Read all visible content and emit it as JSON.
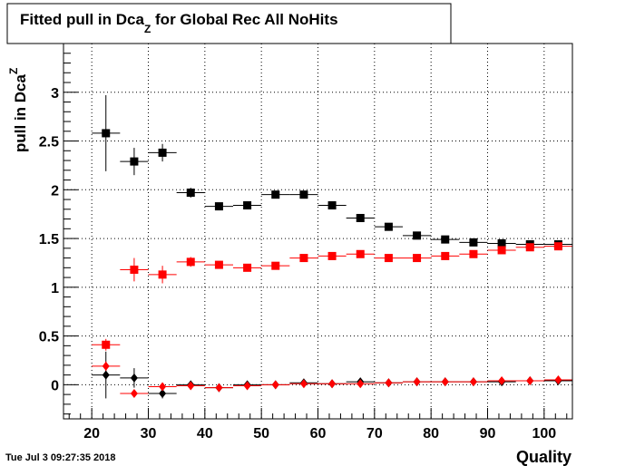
{
  "chart_data": {
    "type": "scatter",
    "title": {
      "prefix": "Fitted pull in Dca",
      "sub": "Z",
      "suffix": " for Global Rec All NoHits"
    },
    "ylabel": {
      "main": "pull in Dca",
      "sub": "Z"
    },
    "xlabel": "Quality",
    "timestamp": "Tue Jul  3 09:27:35 2018",
    "xlim": [
      15,
      105
    ],
    "ylim": [
      -0.35,
      3.5
    ],
    "x_ticks": [
      20,
      30,
      40,
      50,
      60,
      70,
      80,
      90,
      100
    ],
    "y_ticks": [
      0,
      0.5,
      1,
      1.5,
      2,
      2.5,
      3
    ],
    "y_tick_labels": [
      "0",
      "0.5",
      "1",
      "1.5",
      "2",
      "2.5",
      "3"
    ],
    "grid": true,
    "bin_width": 5,
    "series": [
      {
        "marker": "square",
        "color": "#000000",
        "points": [
          {
            "x": 22.5,
            "y": 2.58,
            "err": 0.39
          },
          {
            "x": 27.5,
            "y": 2.29,
            "err": 0.14
          },
          {
            "x": 32.5,
            "y": 2.38,
            "err": 0.09
          },
          {
            "x": 37.5,
            "y": 1.97,
            "err": 0.05
          },
          {
            "x": 42.5,
            "y": 1.83,
            "err": 0.03
          },
          {
            "x": 47.5,
            "y": 1.84,
            "err": 0.02
          },
          {
            "x": 52.5,
            "y": 1.95,
            "err": 0.02
          },
          {
            "x": 57.5,
            "y": 1.95,
            "err": 0.02
          },
          {
            "x": 62.5,
            "y": 1.84,
            "err": 0.02
          },
          {
            "x": 67.5,
            "y": 1.71,
            "err": 0.02
          },
          {
            "x": 72.5,
            "y": 1.62,
            "err": 0.02
          },
          {
            "x": 77.5,
            "y": 1.53,
            "err": 0.01
          },
          {
            "x": 82.5,
            "y": 1.49,
            "err": 0.01
          },
          {
            "x": 87.5,
            "y": 1.46,
            "err": 0.01
          },
          {
            "x": 92.5,
            "y": 1.45,
            "err": 0.01
          },
          {
            "x": 97.5,
            "y": 1.44,
            "err": 0.01
          },
          {
            "x": 102.5,
            "y": 1.44,
            "err": 0.01
          }
        ]
      },
      {
        "marker": "square",
        "color": "#ff0000",
        "points": [
          {
            "x": 22.5,
            "y": 0.41,
            "err": 0.06
          },
          {
            "x": 27.5,
            "y": 1.18,
            "err": 0.12
          },
          {
            "x": 32.5,
            "y": 1.13,
            "err": 0.09
          },
          {
            "x": 37.5,
            "y": 1.26,
            "err": 0.05
          },
          {
            "x": 42.5,
            "y": 1.23,
            "err": 0.03
          },
          {
            "x": 47.5,
            "y": 1.2,
            "err": 0.02
          },
          {
            "x": 52.5,
            "y": 1.22,
            "err": 0.02
          },
          {
            "x": 57.5,
            "y": 1.3,
            "err": 0.02
          },
          {
            "x": 62.5,
            "y": 1.32,
            "err": 0.02
          },
          {
            "x": 67.5,
            "y": 1.34,
            "err": 0.02
          },
          {
            "x": 72.5,
            "y": 1.3,
            "err": 0.01
          },
          {
            "x": 77.5,
            "y": 1.3,
            "err": 0.01
          },
          {
            "x": 82.5,
            "y": 1.32,
            "err": 0.01
          },
          {
            "x": 87.5,
            "y": 1.34,
            "err": 0.01
          },
          {
            "x": 92.5,
            "y": 1.38,
            "err": 0.01
          },
          {
            "x": 97.5,
            "y": 1.41,
            "err": 0.01
          },
          {
            "x": 102.5,
            "y": 1.42,
            "err": 0.01
          }
        ]
      },
      {
        "marker": "diamond",
        "color": "#000000",
        "points": [
          {
            "x": 22.5,
            "y": 0.1,
            "err": 0.24
          },
          {
            "x": 27.5,
            "y": 0.07,
            "err": 0.1
          },
          {
            "x": 32.5,
            "y": -0.09,
            "err": 0.05
          },
          {
            "x": 37.5,
            "y": 0.0,
            "err": 0.03
          },
          {
            "x": 42.5,
            "y": -0.03,
            "err": 0.02
          },
          {
            "x": 47.5,
            "y": 0.0,
            "err": 0.01
          },
          {
            "x": 52.5,
            "y": 0.0,
            "err": 0.01
          },
          {
            "x": 57.5,
            "y": 0.02,
            "err": 0.01
          },
          {
            "x": 62.5,
            "y": 0.01,
            "err": 0.01
          },
          {
            "x": 67.5,
            "y": 0.03,
            "err": 0.01
          },
          {
            "x": 72.5,
            "y": 0.02,
            "err": 0.01
          },
          {
            "x": 77.5,
            "y": 0.03,
            "err": 0.01
          },
          {
            "x": 82.5,
            "y": 0.03,
            "err": 0.01
          },
          {
            "x": 87.5,
            "y": 0.03,
            "err": 0.01
          },
          {
            "x": 92.5,
            "y": 0.03,
            "err": 0.01
          },
          {
            "x": 97.5,
            "y": 0.04,
            "err": 0.01
          },
          {
            "x": 102.5,
            "y": 0.04,
            "err": 0.01
          }
        ]
      },
      {
        "marker": "diamond",
        "color": "#ff0000",
        "points": [
          {
            "x": 22.5,
            "y": 0.19,
            "err": 0.05
          },
          {
            "x": 27.5,
            "y": -0.09,
            "err": 0.03
          },
          {
            "x": 32.5,
            "y": -0.02,
            "err": 0.02
          },
          {
            "x": 37.5,
            "y": -0.01,
            "err": 0.02
          },
          {
            "x": 42.5,
            "y": -0.03,
            "err": 0.01
          },
          {
            "x": 47.5,
            "y": -0.01,
            "err": 0.01
          },
          {
            "x": 52.5,
            "y": 0.0,
            "err": 0.01
          },
          {
            "x": 57.5,
            "y": 0.01,
            "err": 0.01
          },
          {
            "x": 62.5,
            "y": 0.01,
            "err": 0.01
          },
          {
            "x": 67.5,
            "y": 0.01,
            "err": 0.01
          },
          {
            "x": 72.5,
            "y": 0.02,
            "err": 0.01
          },
          {
            "x": 77.5,
            "y": 0.03,
            "err": 0.01
          },
          {
            "x": 82.5,
            "y": 0.03,
            "err": 0.01
          },
          {
            "x": 87.5,
            "y": 0.03,
            "err": 0.01
          },
          {
            "x": 92.5,
            "y": 0.04,
            "err": 0.01
          },
          {
            "x": 97.5,
            "y": 0.04,
            "err": 0.01
          },
          {
            "x": 102.5,
            "y": 0.05,
            "err": 0.01
          }
        ]
      }
    ]
  }
}
